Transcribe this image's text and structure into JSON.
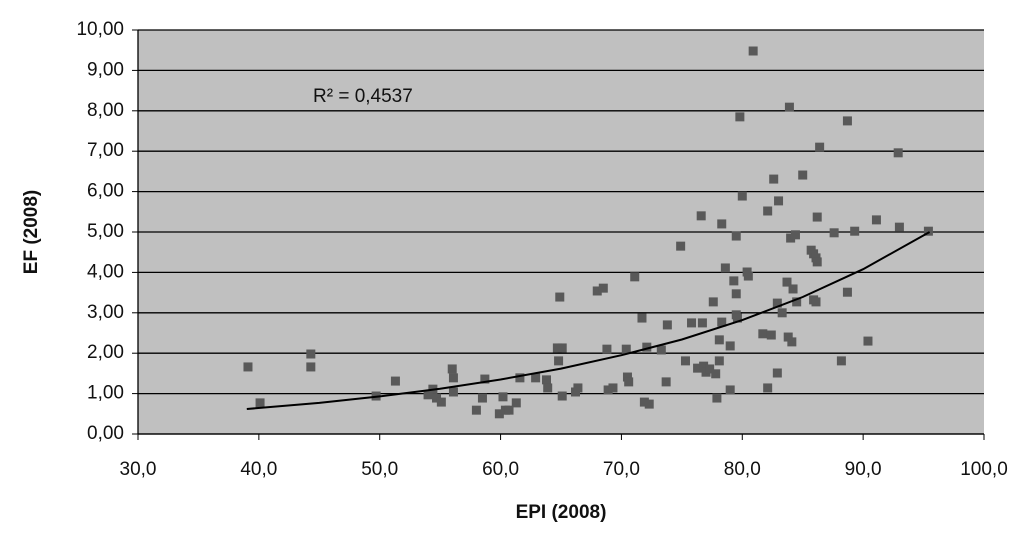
{
  "chart_data": {
    "type": "scatter",
    "x_label": "EPI (2008)",
    "y_label": "EF (2008)",
    "annotation": "R² = 0,4537",
    "xlim": [
      30,
      100
    ],
    "xticks": [
      {
        "value": 30,
        "label": "30,0"
      },
      {
        "value": 40,
        "label": "40,0"
      },
      {
        "value": 50,
        "label": "50,0"
      },
      {
        "value": 60,
        "label": "60,0"
      },
      {
        "value": 70,
        "label": "70,0"
      },
      {
        "value": 80,
        "label": "80,0"
      },
      {
        "value": 90,
        "label": "90,0"
      },
      {
        "value": 100,
        "label": "100,0"
      }
    ],
    "ylim": [
      0,
      10
    ],
    "yticks": [
      {
        "value": 0,
        "label": "0,00"
      },
      {
        "value": 1,
        "label": "1,00"
      },
      {
        "value": 2,
        "label": "2,00"
      },
      {
        "value": 3,
        "label": "3,00"
      },
      {
        "value": 4,
        "label": "4,00"
      },
      {
        "value": 5,
        "label": "5,00"
      },
      {
        "value": 6,
        "label": "6,00"
      },
      {
        "value": 7,
        "label": "7,00"
      },
      {
        "value": 8,
        "label": "8,00"
      },
      {
        "value": 9,
        "label": "9,00"
      },
      {
        "value": 10,
        "label": "10,00"
      }
    ],
    "grid": true,
    "color": "#595959",
    "x": [
      39.1,
      40.1,
      44.3,
      44.3,
      49.7,
      51.3,
      54.0,
      54.4,
      54.7,
      55.1,
      56.0,
      56.1,
      56.1,
      58.0,
      58.7,
      58.5,
      59.9,
      60.4,
      60.2,
      60.7,
      61.3,
      61.6,
      62.9,
      63.8,
      63.9,
      64.9,
      64.7,
      65.1,
      64.8,
      65.1,
      66.2,
      66.4,
      68.0,
      68.5,
      68.8,
      68.9,
      69.3,
      70.4,
      70.5,
      70.6,
      71.1,
      71.7,
      72.1,
      71.9,
      72.3,
      73.3,
      73.7,
      73.8,
      74.9,
      75.3,
      75.8,
      76.3,
      76.6,
      76.7,
      76.8,
      77.0,
      77.3,
      77.6,
      77.8,
      77.9,
      78.1,
      78.1,
      78.3,
      78.3,
      78.6,
      79.0,
      79.0,
      79.3,
      79.5,
      79.5,
      79.5,
      79.8,
      80.0,
      79.6,
      80.4,
      80.5,
      80.9,
      81.7,
      82.1,
      82.1,
      82.4,
      82.6,
      82.9,
      83.0,
      82.9,
      83.3,
      83.7,
      83.9,
      83.8,
      84.0,
      84.1,
      84.2,
      84.4,
      84.5,
      85.0,
      85.7,
      85.9,
      86.1,
      85.9,
      86.1,
      86.2,
      86.4,
      86.2,
      87.6,
      88.2,
      88.7,
      88.7,
      89.3,
      90.4,
      91.1,
      92.9,
      93.0,
      95.4
    ],
    "values": [
      1.66,
      0.77,
      1.98,
      1.66,
      0.94,
      1.31,
      0.97,
      1.11,
      0.89,
      0.79,
      1.61,
      1.39,
      1.04,
      0.59,
      1.36,
      0.89,
      0.5,
      0.59,
      0.92,
      0.59,
      0.77,
      1.39,
      1.39,
      1.34,
      1.14,
      3.39,
      2.13,
      2.13,
      1.81,
      0.94,
      1.04,
      1.14,
      3.54,
      3.61,
      2.1,
      1.09,
      1.14,
      2.1,
      1.41,
      1.29,
      3.89,
      2.87,
      2.15,
      0.79,
      0.74,
      2.08,
      1.29,
      2.7,
      4.65,
      1.81,
      2.75,
      1.63,
      5.4,
      2.75,
      1.68,
      1.53,
      1.61,
      3.27,
      1.49,
      0.89,
      1.81,
      2.33,
      5.2,
      2.77,
      4.11,
      2.18,
      1.09,
      3.79,
      4.9,
      3.47,
      2.95,
      7.85,
      5.89,
      2.87,
      4.01,
      3.91,
      9.48,
      2.48,
      5.52,
      1.14,
      2.45,
      6.31,
      3.24,
      5.77,
      1.51,
      3.0,
      3.76,
      8.09,
      2.4,
      4.85,
      2.28,
      3.59,
      4.93,
      3.27,
      6.41,
      4.55,
      4.46,
      4.36,
      3.32,
      3.27,
      5.37,
      7.1,
      4.26,
      4.98,
      1.81,
      7.75,
      3.51,
      5.02,
      2.3,
      5.3,
      6.96,
      5.12,
      5.02
    ],
    "trendline": {
      "color": "#000000",
      "x": [
        39,
        45,
        50,
        55,
        60,
        65,
        70,
        75,
        80,
        85,
        90,
        95.5
      ],
      "values": [
        0.62,
        0.77,
        0.93,
        1.12,
        1.35,
        1.62,
        1.95,
        2.34,
        2.82,
        3.39,
        4.08,
        5.0
      ]
    }
  }
}
